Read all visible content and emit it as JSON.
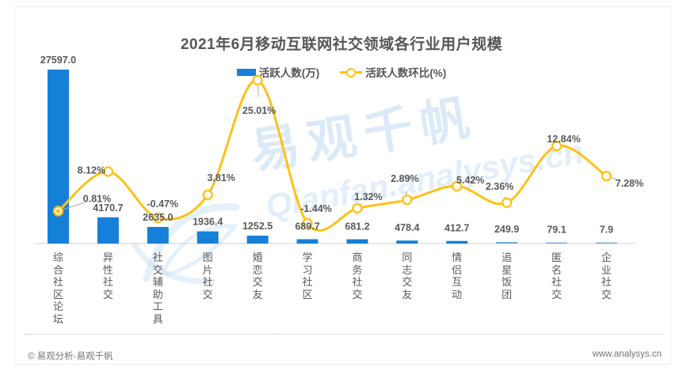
{
  "title": "2021年6月移动互联网社交领域各行业用户规模",
  "legend": {
    "bar_label": "活跃人数(万)",
    "line_label": "活跃人数环比(%)"
  },
  "watermark": {
    "cn": "易观千帆",
    "en": "Qianfan.analysys.cn"
  },
  "footer": {
    "copyright": "© 易观分析·易观千帆",
    "website": "www.analysys.cn"
  },
  "colors": {
    "bar": "#1680D8",
    "bar_light": "#6FA8DC",
    "line": "#FFC117",
    "marker_fill": "#FFFFFF",
    "label_text": "#595959",
    "axis": "#D9D9D9",
    "leader": "#ABABAB",
    "watermark": "#AECFEE"
  },
  "chart_data": {
    "type": "bar",
    "title": "2021年6月移动互联网社交领域各行业用户规模",
    "categories": [
      "综合社区论坛",
      "异性社交",
      "社交辅助工具",
      "图片社交",
      "婚恋交友",
      "学习社区",
      "商务社交",
      "同志交友",
      "情侣互动",
      "追星饭团",
      "匿名社交",
      "企业社交"
    ],
    "series": [
      {
        "name": "活跃人数(万)",
        "type": "bar",
        "values": [
          27597.0,
          4170.7,
          2635.0,
          1936.4,
          1252.5,
          689.7,
          681.2,
          478.4,
          412.7,
          249.9,
          79.1,
          7.9
        ]
      },
      {
        "name": "活跃人数环比(%)",
        "type": "line",
        "values": [
          0.81,
          8.12,
          -0.47,
          3.81,
          25.01,
          -1.44,
          1.32,
          2.89,
          5.42,
          2.36,
          12.84,
          7.28
        ]
      }
    ],
    "xlabel": "",
    "ylabel_bar": "活跃人数(万)",
    "ylabel_line": "活跃人数环比(%)",
    "ylim_bar": [
      0,
      27597
    ],
    "grid": "off",
    "legend_position": "top",
    "value_labels": "on"
  }
}
